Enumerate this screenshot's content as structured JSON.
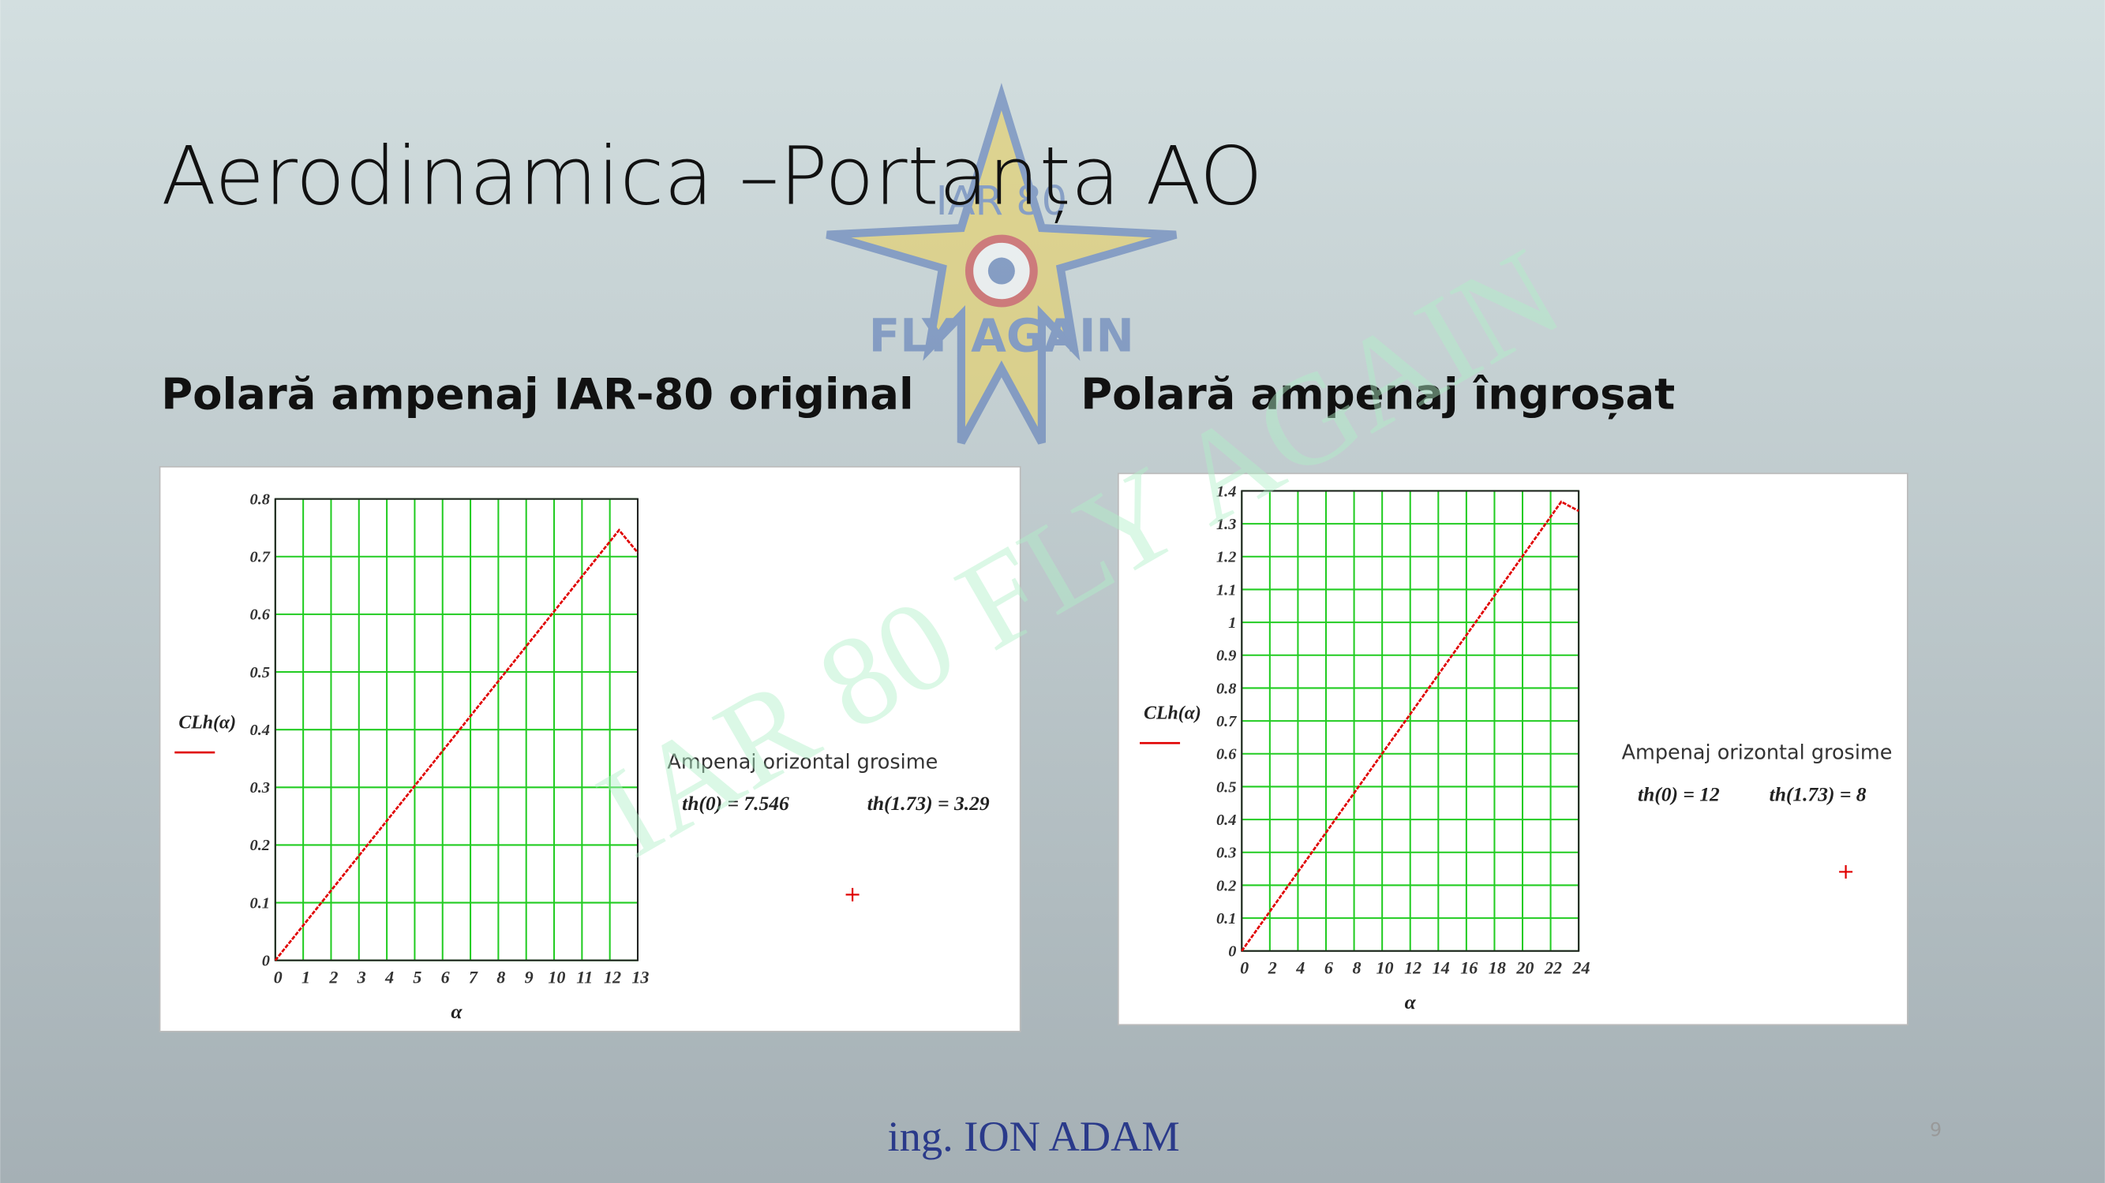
{
  "title": "Aerodinamica –Portanța AO",
  "logo": {
    "top": "IAR 80",
    "bottom": "FLY AGAIN"
  },
  "watermark": "IAR 80 FLY AGAIN",
  "headings": [
    "Polară ampenaj IAR-80 original",
    "Polară ampenaj îngroșat"
  ],
  "author": "ing. ION ADAM",
  "page_number": "9",
  "chart_data": [
    {
      "type": "line",
      "x_label": "α",
      "y_label": "CLh(α)",
      "annotations": [
        "Ampenaj orizontal grosime",
        "th(0) = 7.546",
        "th(1.73) = 3.29"
      ],
      "xlim": [
        0,
        13
      ],
      "xticks": [
        0,
        1,
        2,
        3,
        4,
        5,
        6,
        7,
        8,
        9,
        10,
        11,
        12,
        13
      ],
      "ylim": [
        0,
        0.8
      ],
      "yticks": [
        0,
        0.1,
        0.2,
        0.3,
        0.4,
        0.5,
        0.6,
        0.7,
        0.8
      ],
      "grid": true,
      "grid_color": "#22cc22",
      "x": [
        0,
        12.33,
        13
      ],
      "series": [
        {
          "name": "CLh(α)",
          "color": "#e00000",
          "values": [
            0,
            0.746,
            0.707
          ]
        }
      ]
    },
    {
      "type": "line",
      "x_label": "α",
      "y_label": "CLh(α)",
      "annotations": [
        "Ampenaj orizontal grosime",
        "th(0) = 12",
        "th(1.73) = 8"
      ],
      "xlim": [
        0,
        24
      ],
      "xticks": [
        0,
        2,
        4,
        6,
        8,
        10,
        12,
        14,
        16,
        18,
        20,
        22,
        24
      ],
      "ylim": [
        0,
        1.4
      ],
      "yticks": [
        0,
        0.1,
        0.2,
        0.3,
        0.4,
        0.5,
        0.6,
        0.7,
        0.8,
        0.9,
        1,
        1.1,
        1.2,
        1.3,
        1.4
      ],
      "grid": true,
      "grid_color": "#22cc22",
      "x": [
        0,
        22.76,
        24
      ],
      "series": [
        {
          "name": "CLh(α)",
          "color": "#e00000",
          "values": [
            0,
            1.367,
            1.339
          ]
        }
      ]
    }
  ]
}
